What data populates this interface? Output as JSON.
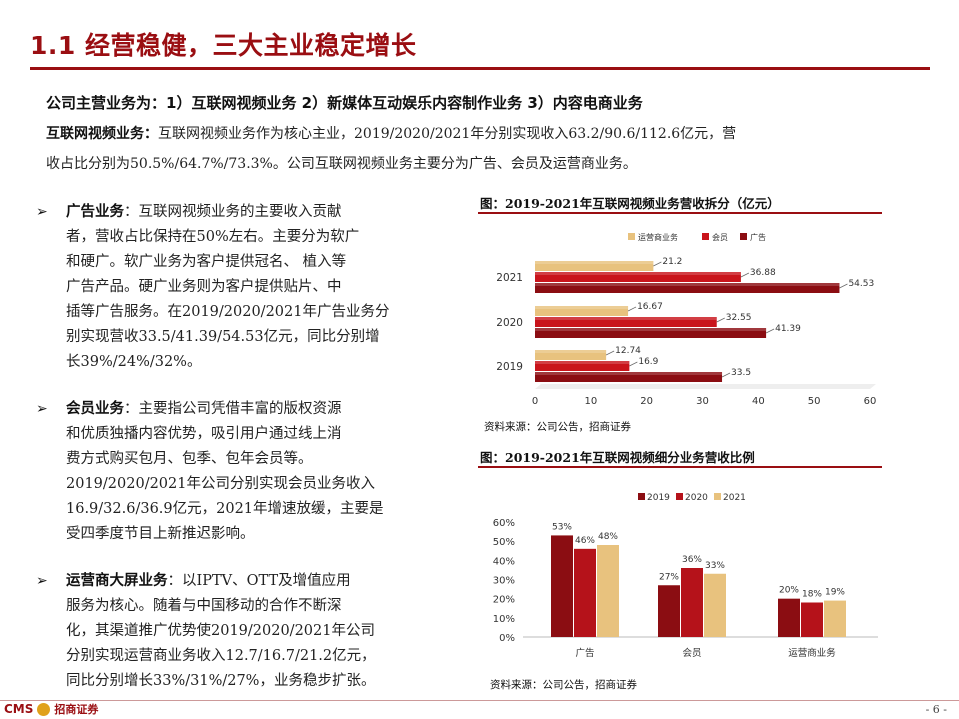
{
  "page": {
    "title": "1.1 经营稳健，三大主业稳定增长",
    "page_number": "- 6 -"
  },
  "intro": {
    "main_business": "公司主营业务为：1）互联网视频业务 2）新媒体互动娱乐内容制作业务 3）内容电商业务",
    "video_head": "互联网视频业务：",
    "video_line1": "互联网视频业务作为核心主业，2019/2020/2021年分别实现收入63.2/90.6/112.6亿元，营",
    "video_line2": "收占比分别为50.5%/64.7%/73.3%。公司互联网视频业务主要分为广告、会员及运营商业务。"
  },
  "bullets": [
    {
      "head": "广告业务",
      "lines": [
        "：互联网视频业务的主要收入贡献",
        "者，营收占比保持在50%左右。主要分为软广",
        "和硬广。软广业务为客户提供冠名、 植入等",
        "广告产品。硬广业务则为客户提供贴片、中",
        "插等广告服务。在2019/2020/2021年广告业务分",
        "别实现营收33.5/41.39/54.53亿元，同比分别增",
        "长39%/24%/32%。"
      ]
    },
    {
      "head": "会员业务",
      "lines": [
        "：主要指公司凭借丰富的版权资源",
        "和优质独播内容优势，吸引用户通过线上消",
        "费方式购买包月、包季、包年会员等。",
        "2019/2020/2021年公司分别实现会员业务收入",
        "16.9/32.6/36.9亿元，2021年增速放缓，主要是",
        "受四季度节目上新推迟影响。"
      ]
    },
    {
      "head": "运营商大屏业务",
      "lines": [
        "：以IPTV、OTT及增值应用",
        "服务为核心。随着与中国移动的合作不断深",
        "化，其渠道推广优势使2019/2020/2021年公司",
        "分别实现运营商业务收入12.7/16.7/21.2亿元，",
        "同比分别增长33%/31%/27%，业务稳步扩张。"
      ]
    }
  ],
  "figures": {
    "fig1_title": "图：2019-2021年互联网视频业务营收拆分（亿元）",
    "fig1_source": "资料来源：公司公告，招商证券",
    "fig2_title": "图：2019-2021年互联网视频细分业务营收比例",
    "fig2_source": "资料来源：公司公告，招商证券"
  },
  "footer": {
    "logo_cms": "CMS",
    "logo_name": "招商证券"
  },
  "colors": {
    "brand_red": "#9a0e12",
    "series_yunying": "#e8c27e",
    "series_huiyuan": "#c9141b",
    "series_guanggao": "#8b0d12",
    "y2019": "#8b0d12",
    "y2020": "#b5121a",
    "y2021": "#e8c27e"
  },
  "chart_data": [
    {
      "type": "bar",
      "orientation": "horizontal",
      "title": "图：2019-2021年互联网视频业务营收拆分（亿元）",
      "categories": [
        "2019",
        "2020",
        "2021"
      ],
      "series": [
        {
          "name": "运营商业务",
          "values": [
            12.74,
            16.67,
            21.2
          ]
        },
        {
          "name": "会员",
          "values": [
            16.9,
            32.55,
            36.88
          ]
        },
        {
          "name": "广告",
          "values": [
            33.5,
            41.39,
            54.53
          ]
        }
      ],
      "xlim": [
        0,
        60
      ],
      "x_ticks": [
        "0",
        "10",
        "20",
        "30",
        "40",
        "50",
        "60"
      ],
      "legend_position": "top-left",
      "grid": false
    },
    {
      "type": "bar",
      "title": "图：2019-2021年互联网视频细分业务营收比例",
      "categories": [
        "广告",
        "会员",
        "运营商业务"
      ],
      "series": [
        {
          "name": "2019",
          "values": [
            53,
            27,
            20
          ],
          "labels": [
            "53%",
            "27%",
            "20%"
          ]
        },
        {
          "name": "2020",
          "values": [
            46,
            36,
            18
          ],
          "labels": [
            "46%",
            "36%",
            "18%"
          ]
        },
        {
          "name": "2021",
          "values": [
            48,
            33,
            19
          ],
          "labels": [
            "48%",
            "33%",
            "19%"
          ]
        }
      ],
      "ylim": [
        0,
        60
      ],
      "y_ticks": [
        "0%",
        "10%",
        "20%",
        "30%",
        "40%",
        "50%",
        "60%"
      ],
      "legend_position": "top-center",
      "grid": false
    }
  ]
}
